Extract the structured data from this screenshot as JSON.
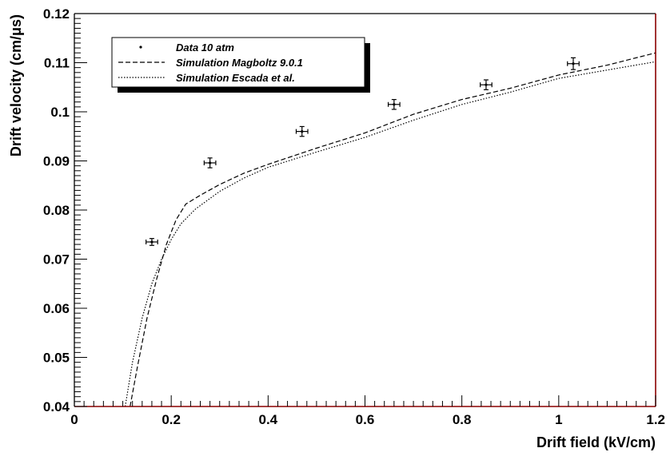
{
  "chart_data": {
    "type": "scatter",
    "xlabel": "Drift field (kV/cm)",
    "ylabel": "Drift velocity (cm/μs)",
    "xlim": [
      0,
      1.2
    ],
    "ylim": [
      0.04,
      0.12
    ],
    "x_ticks": [
      0,
      0.2,
      0.4,
      0.6,
      0.8,
      1,
      1.2
    ],
    "x_tick_labels": [
      "0",
      "0.2",
      "0.4",
      "0.6",
      "0.8",
      "1",
      "1.2"
    ],
    "y_ticks": [
      0.04,
      0.05,
      0.06,
      0.07,
      0.08,
      0.09,
      0.1,
      0.11,
      0.12
    ],
    "y_tick_labels": [
      "0.04",
      "0.05",
      "0.06",
      "0.07",
      "0.08",
      "0.09",
      "0.1",
      "0.11",
      "0.12"
    ],
    "grid": false,
    "legend_position": "top-left",
    "frame_color": "#8b0000",
    "series": [
      {
        "name": "Data 10 atm",
        "kind": "points-with-errors",
        "x": [
          0.16,
          0.28,
          0.47,
          0.66,
          0.85,
          1.03
        ],
        "y": [
          0.0735,
          0.0896,
          0.096,
          0.1015,
          0.1055,
          0.1098
        ],
        "xerr": [
          0.012,
          0.012,
          0.012,
          0.012,
          0.012,
          0.012
        ],
        "yerr": [
          0.0007,
          0.001,
          0.001,
          0.001,
          0.001,
          0.0012
        ]
      },
      {
        "name": "Simulation Magboltz 9.0.1",
        "kind": "line",
        "dash": "dashed",
        "x": [
          0.115,
          0.13,
          0.15,
          0.17,
          0.19,
          0.21,
          0.23,
          0.26,
          0.3,
          0.35,
          0.4,
          0.5,
          0.6,
          0.7,
          0.8,
          0.9,
          1.0,
          1.1,
          1.2
        ],
        "y": [
          0.04,
          0.048,
          0.058,
          0.066,
          0.073,
          0.078,
          0.0812,
          0.083,
          0.0852,
          0.0875,
          0.0893,
          0.0926,
          0.0957,
          0.0995,
          0.1025,
          0.1048,
          0.1075,
          0.1095,
          0.112
        ]
      },
      {
        "name": "Simulation Escada et al.",
        "kind": "line",
        "dash": "dotted",
        "x": [
          0.105,
          0.12,
          0.14,
          0.16,
          0.18,
          0.2,
          0.22,
          0.25,
          0.3,
          0.35,
          0.4,
          0.5,
          0.6,
          0.7,
          0.8,
          0.9,
          1.0,
          1.1,
          1.2
        ],
        "y": [
          0.04,
          0.049,
          0.058,
          0.065,
          0.07,
          0.074,
          0.0772,
          0.0802,
          0.0838,
          0.0865,
          0.0887,
          0.0918,
          0.0948,
          0.0983,
          0.1015,
          0.104,
          0.1068,
          0.1085,
          0.1102
        ]
      }
    ]
  }
}
